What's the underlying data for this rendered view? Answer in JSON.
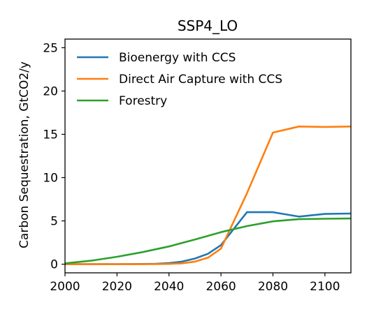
{
  "chart_data": {
    "type": "line",
    "title": "SSP4_LO",
    "xlabel": "",
    "ylabel": "Carbon Sequestration, GtCO2/y",
    "xlim": [
      2000,
      2110
    ],
    "ylim": [
      -1,
      26
    ],
    "xticks": [
      "2000",
      "2020",
      "2040",
      "2060",
      "2080",
      "2100"
    ],
    "yticks": [
      "0",
      "5",
      "10",
      "15",
      "20",
      "25"
    ],
    "grid": false,
    "legend": "upper-left",
    "series": [
      {
        "name": "Bioenergy with CCS",
        "color": "#1f77b4",
        "x": [
          2000,
          2010,
          2020,
          2030,
          2035,
          2040,
          2045,
          2050,
          2055,
          2060,
          2070,
          2080,
          2090,
          2100,
          2110
        ],
        "y": [
          0,
          0,
          0,
          0.02,
          0.05,
          0.12,
          0.3,
          0.65,
          1.2,
          2.2,
          6.0,
          6.0,
          5.5,
          5.8,
          5.85
        ]
      },
      {
        "name": "Direct Air Capture with CCS",
        "color": "#ff7f0e",
        "x": [
          2000,
          2010,
          2020,
          2030,
          2035,
          2040,
          2045,
          2050,
          2055,
          2060,
          2070,
          2080,
          2090,
          2100,
          2110
        ],
        "y": [
          0,
          0,
          0,
          0,
          0.01,
          0.03,
          0.1,
          0.3,
          0.75,
          1.8,
          8.2,
          15.2,
          15.9,
          15.85,
          15.9
        ]
      },
      {
        "name": "Forestry",
        "color": "#2ca02c",
        "x": [
          2000,
          2010,
          2020,
          2030,
          2040,
          2050,
          2060,
          2070,
          2080,
          2090,
          2100,
          2110
        ],
        "y": [
          0.1,
          0.4,
          0.85,
          1.4,
          2.05,
          2.85,
          3.7,
          4.4,
          4.95,
          5.2,
          5.25,
          5.28
        ]
      }
    ]
  }
}
